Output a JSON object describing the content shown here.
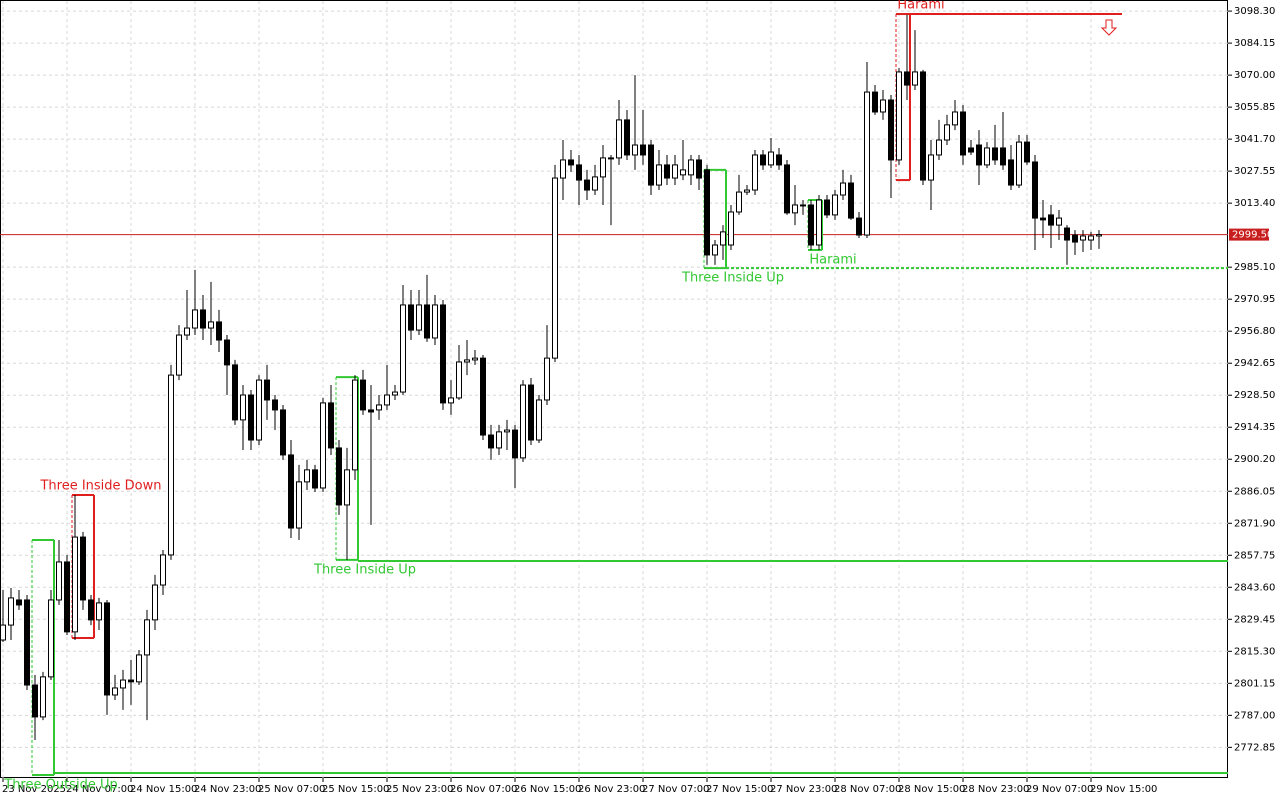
{
  "chart_data": {
    "type": "candlestick",
    "categories": [
      "23 Nov 2025",
      null,
      null,
      null,
      null,
      null,
      null,
      null,
      "24 Nov 07:00",
      null,
      null,
      null,
      null,
      null,
      null,
      null,
      "24 Nov 15:00",
      null,
      null,
      null,
      null,
      null,
      null,
      null,
      "24 Nov 23:00",
      null,
      null,
      null,
      null,
      null,
      null,
      null,
      "25 Nov 07:00",
      null,
      null,
      null,
      null,
      null,
      null,
      null,
      "25 Nov 15:00",
      null,
      null,
      null,
      null,
      null,
      null,
      null,
      "25 Nov 23:00",
      null,
      null,
      null,
      null,
      null,
      null,
      null,
      "26 Nov 07:00",
      null,
      null,
      null,
      null,
      null,
      null,
      null,
      "26 Nov 15:00",
      null,
      null,
      null,
      null,
      null,
      null,
      null,
      "26 Nov 23:00",
      null,
      null,
      null,
      null,
      null,
      null,
      null,
      "27 Nov 07:00",
      null,
      null,
      null,
      null,
      null,
      null,
      null,
      "27 Nov 15:00",
      null,
      null,
      null,
      null,
      null,
      null,
      null,
      "27 Nov 23:00",
      null,
      null,
      null,
      null,
      null,
      null,
      null,
      "28 Nov 07:00",
      null,
      null,
      null,
      null,
      null,
      null,
      null,
      "28 Nov 15:00",
      null,
      null,
      null,
      null,
      null,
      null,
      null,
      "28 Nov 23:00",
      null,
      null,
      null,
      null,
      null,
      null,
      null,
      "29 Nov 07:00",
      null,
      null,
      null,
      null,
      null,
      null,
      null,
      "29 Nov 15:00",
      null
    ],
    "open": [
      2820.3,
      2826.9,
      2838.0,
      2838.0,
      2800.4,
      2786.3,
      2804.0,
      2838.0,
      2854.8,
      2823.9,
      2865.8,
      2838.0,
      2829.2,
      2836.7,
      2796.0,
      2799.1,
      2802.6,
      2801.8,
      2813.7,
      2829.2,
      2844.6,
      2857.9,
      2937.4,
      2955.1,
      2958.2,
      2966.2,
      2958.2,
      2960.9,
      2952.9,
      2941.9,
      2917.6,
      2928.6,
      2908.7,
      2935.2,
      2926.4,
      2922.0,
      2902.1,
      2869.8,
      2890.2,
      2895.5,
      2887.5,
      2925.1,
      2905.2,
      2880.0,
      2895.5,
      2935.2,
      2922.0,
      2922.0,
      2924.2,
      2928.6,
      2929.9,
      2968.4,
      2957.3,
      2968.4,
      2953.8,
      2968.4,
      2925.1,
      2927.3,
      2943.2,
      2944.1,
      2944.9,
      2910.9,
      2905.2,
      2912.3,
      2913.1,
      2900.8,
      2933.0,
      2908.7,
      2926.4,
      2944.9,
      3024.5,
      3032.5,
      3030.3,
      3023.6,
      3019.2,
      3025.0,
      3033.4,
      3033.4,
      3050.2,
      3034.7,
      3039.1,
      3039.1,
      3021.4,
      3030.3,
      3024.5,
      3025.9,
      3025.9,
      3032.5,
      3028.1,
      2990.5,
      2994.9,
      2994.9,
      3009.5,
      3018.3,
      3019.2,
      3034.7,
      3030.3,
      3034.7,
      3030.3,
      3009.1,
      3012.6,
      3012.6,
      2994.9,
      3014.8,
      3008.2,
      3017.0,
      3022.3,
      3006.8,
      2999.3,
      3062.5,
      3053.7,
      3059.0,
      3032.5,
      3071.4,
      3065.6,
      3071.4,
      3023.6,
      3034.7,
      3041.3,
      3048.0,
      3053.7,
      3037.8,
      3039.1,
      3030.3,
      3037.8,
      3037.8,
      3032.5,
      3021.4,
      3040.4,
      3031.6,
      3006.8,
      3008.2,
      3003.7,
      3002.4,
      2999.3,
      2997.1,
      2997.1,
      2998.9
    ],
    "high": [
      2842.4,
      2843.3,
      2842.4,
      2840.2,
      2804.9,
      2806.2,
      2842.4,
      2864.5,
      2857.9,
      2884.4,
      2868.1,
      2840.2,
      2838.9,
      2838.0,
      2804.9,
      2807.1,
      2811.5,
      2815.9,
      2833.6,
      2849.1,
      2860.1,
      2941.9,
      2959.5,
      2975.0,
      2983.9,
      2972.8,
      2978.6,
      2966.2,
      2955.1,
      2944.1,
      2933.0,
      2930.8,
      2937.4,
      2941.9,
      2928.6,
      2924.2,
      2908.7,
      2897.7,
      2899.9,
      2897.7,
      2927.3,
      2933.0,
      2908.7,
      2905.2,
      2937.4,
      2939.7,
      2933.0,
      2928.6,
      2941.9,
      2933.0,
      2977.2,
      2975.0,
      2975.0,
      2981.7,
      2972.8,
      2970.6,
      2935.2,
      2950.7,
      2952.9,
      2948.5,
      2946.3,
      2915.4,
      2915.4,
      2917.6,
      2915.4,
      2935.2,
      2936.1,
      2928.6,
      2959.5,
      3030.3,
      3041.3,
      3036.9,
      3034.7,
      3028.1,
      3030.3,
      3039.1,
      3034.7,
      3059.0,
      3054.6,
      3070.0,
      3054.6,
      3041.3,
      3036.9,
      3034.7,
      3034.7,
      3041.3,
      3034.7,
      3034.7,
      3030.3,
      2997.1,
      3003.7,
      3012.6,
      3025.9,
      3021.4,
      3036.9,
      3036.9,
      3042.2,
      3037.8,
      3032.5,
      3021.4,
      3014.8,
      3014.8,
      3017.0,
      3017.0,
      3019.2,
      3028.1,
      3025.9,
      3009.5,
      3075.8,
      3065.6,
      3063.4,
      3061.2,
      3073.1,
      3096.6,
      3089.9,
      3072.3,
      3041.3,
      3050.2,
      3052.4,
      3059.0,
      3056.8,
      3041.3,
      3045.7,
      3040.4,
      3048.0,
      3053.7,
      3039.1,
      3043.5,
      3043.5,
      3034.7,
      3014.8,
      3012.6,
      3010.4,
      3003.7,
      3001.5,
      3001.5,
      3000.7,
      3001.5
    ],
    "low": [
      2819.4,
      2820.3,
      2833.6,
      2798.2,
      2776.1,
      2784.9,
      2802.6,
      2835.8,
      2822.5,
      2820.3,
      2833.6,
      2826.9,
      2824.7,
      2787.2,
      2793.8,
      2789.4,
      2791.6,
      2800.4,
      2784.9,
      2824.7,
      2840.2,
      2855.7,
      2935.2,
      2952.9,
      2955.1,
      2952.9,
      2950.7,
      2947.6,
      2928.6,
      2915.4,
      2904.3,
      2904.3,
      2906.5,
      2917.6,
      2913.1,
      2899.9,
      2865.4,
      2864.5,
      2886.6,
      2885.7,
      2885.7,
      2902.1,
      2875.6,
      2855.7,
      2891.0,
      2919.8,
      2871.2,
      2917.6,
      2922.0,
      2926.4,
      2928.6,
      2952.9,
      2955.1,
      2952.1,
      2950.7,
      2922.0,
      2919.8,
      2926.4,
      2937.4,
      2941.9,
      2908.7,
      2899.9,
      2902.1,
      2904.3,
      2887.5,
      2899.0,
      2906.5,
      2907.4,
      2924.2,
      2943.2,
      3014.8,
      3027.2,
      3012.6,
      3014.8,
      3017.0,
      3012.6,
      3003.7,
      3030.3,
      3032.5,
      3028.1,
      3030.3,
      3017.0,
      3019.2,
      3021.4,
      3021.4,
      3023.6,
      3021.4,
      3019.2,
      2986.1,
      2986.1,
      2988.3,
      2992.7,
      3008.2,
      3017.0,
      3017.0,
      3028.1,
      3028.9,
      3028.1,
      3008.2,
      3003.7,
      3008.2,
      2992.7,
      2992.7,
      3006.8,
      3006.0,
      3014.8,
      3006.0,
      2998.0,
      2998.0,
      3052.4,
      3050.2,
      3015.7,
      3030.3,
      3059.0,
      3063.4,
      3021.4,
      3010.4,
      3032.5,
      3039.1,
      3045.7,
      3030.3,
      3034.7,
      3021.4,
      3028.9,
      3030.3,
      3028.1,
      3019.2,
      3020.1,
      3030.3,
      2992.7,
      2998.0,
      2993.6,
      2997.1,
      2986.1,
      2990.5,
      2991.8,
      2992.7,
      2993.2
    ],
    "close": [
      2826.9,
      2838.9,
      2835.8,
      2800.4,
      2786.3,
      2804.0,
      2838.0,
      2854.8,
      2823.9,
      2865.8,
      2838.0,
      2829.2,
      2836.7,
      2796.0,
      2799.1,
      2802.6,
      2801.8,
      2813.7,
      2829.2,
      2844.6,
      2857.9,
      2937.4,
      2955.1,
      2958.2,
      2966.2,
      2958.2,
      2960.9,
      2952.9,
      2941.9,
      2917.6,
      2928.6,
      2908.7,
      2935.2,
      2926.4,
      2922.0,
      2902.1,
      2869.8,
      2890.2,
      2895.5,
      2887.5,
      2925.1,
      2905.2,
      2880.0,
      2895.5,
      2935.2,
      2922.0,
      2921.1,
      2924.2,
      2928.6,
      2929.9,
      2968.4,
      2957.3,
      2968.4,
      2953.8,
      2968.4,
      2925.1,
      2927.3,
      2943.2,
      2944.1,
      2944.9,
      2910.9,
      2905.2,
      2912.3,
      2913.1,
      2900.8,
      2933.0,
      2908.7,
      2926.4,
      2944.9,
      3024.5,
      3032.5,
      3030.3,
      3023.6,
      3019.2,
      3025.0,
      3033.4,
      3033.0,
      3050.2,
      3034.7,
      3039.1,
      3034.7,
      3021.4,
      3030.3,
      3024.5,
      3030.3,
      3028.1,
      3032.5,
      3024.5,
      2990.5,
      2994.9,
      3000.7,
      3009.5,
      3018.3,
      3019.2,
      3034.7,
      3030.3,
      3036.0,
      3030.3,
      3009.1,
      3012.6,
      3012.2,
      2994.9,
      3014.8,
      3008.2,
      3017.0,
      3022.3,
      3006.8,
      2999.3,
      3062.5,
      3053.7,
      3059.0,
      3032.5,
      3071.4,
      3065.6,
      3071.4,
      3023.6,
      3034.7,
      3041.3,
      3048.0,
      3053.7,
      3034.7,
      3036.0,
      3030.3,
      3037.8,
      3032.5,
      3030.3,
      3021.4,
      3040.4,
      3031.6,
      3006.8,
      3006.0,
      3003.7,
      3006.8,
      2997.1,
      2996.2,
      2998.9,
      2998.9,
      2999.5
    ],
    "ylim": [
      2759.3,
      3103.2
    ],
    "yticks": [
      {
        "value": 3098.3,
        "label": "3098.30"
      },
      3084.15,
      {
        "value": 3070,
        "label": "3070.00"
      },
      3055.85,
      {
        "value": 3041.7,
        "label": "3041.70"
      },
      3027.55,
      {
        "value": 3013.4,
        "label": "3013.40"
      },
      {
        "value": 2985.1,
        "label": "2985.10"
      },
      2970.95,
      {
        "value": 2956.8,
        "label": "2956.80"
      },
      2942.65,
      {
        "value": 2928.5,
        "label": "2928.50"
      },
      2914.35,
      {
        "value": 2900.2,
        "label": "2900.20"
      },
      2886.05,
      {
        "value": 2871.9,
        "label": "2871.90"
      },
      2857.75,
      {
        "value": 2843.6,
        "label": "2843.60"
      },
      2829.45,
      {
        "value": 2815.3,
        "label": "2815.30"
      },
      2801.15,
      {
        "value": 2787,
        "label": "2787.00"
      },
      2772.85
    ],
    "last_price": {
      "value": 2999.5,
      "label": "2999.50"
    },
    "last_price_color": "#c81e1e",
    "grid": true,
    "up_color": "#ffffff",
    "down_color": "#000000",
    "patterns": [
      {
        "name": "Three Outside Up",
        "color": "#32c832",
        "direction": "bullish",
        "candles": [
          4,
          6
        ],
        "high": 2864.5,
        "low": 2760.6,
        "level": 2761.5
      },
      {
        "name": "Three Inside Down",
        "color": "#e01e1e",
        "direction": "bearish",
        "candles": [
          9,
          11
        ],
        "high": 2884.4,
        "low": 2821.2
      },
      {
        "name": "Three Inside Up",
        "color": "#32c832",
        "direction": "bullish",
        "candles": [
          42,
          44
        ],
        "high": 2936.5,
        "low": 2855.7,
        "level": 2855.2
      },
      {
        "name": "Three Inside Up",
        "color": "#32c832",
        "direction": "bullish",
        "candles": [
          88,
          90
        ],
        "high": 3028.1,
        "low": 2984.7,
        "level": 2984.7
      },
      {
        "name": "Harami",
        "color": "#32c832",
        "direction": "bullish",
        "candles": [
          101,
          102
        ],
        "high": 3014.8,
        "low": 2992.7
      },
      {
        "name": "Harami",
        "color": "#e01e1e",
        "direction": "bearish",
        "candles": [
          112,
          113
        ],
        "high": 3097.0,
        "low": 3023.6,
        "level": 3097.0
      }
    ]
  }
}
